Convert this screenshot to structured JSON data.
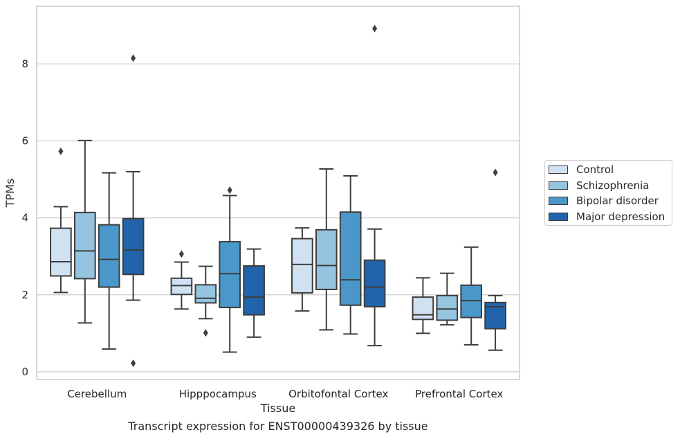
{
  "caption": "Transcript expression for ENST00000439326 by tissue",
  "chart_data": {
    "type": "box",
    "xlabel": "Tissue",
    "ylabel": "TPMs",
    "ylim": [
      -0.2,
      9.5
    ],
    "yticks": [
      0,
      2,
      4,
      6,
      8
    ],
    "grid": "horizontal",
    "legend_placement": "right",
    "categories": [
      "Cerebellum",
      "Hipppocampus",
      "Orbitofontal Cortex",
      "Prefrontal Cortex"
    ],
    "series": [
      {
        "name": "Control",
        "color": "#d0e1f2",
        "boxes": [
          {
            "whisker_low": 2.06,
            "q1": 2.49,
            "median": 2.86,
            "q3": 3.73,
            "whisker_high": 4.29,
            "outliers": [
              5.73
            ]
          },
          {
            "whisker_low": 1.63,
            "q1": 2.01,
            "median": 2.24,
            "q3": 2.43,
            "whisker_high": 2.85,
            "outliers": [
              3.06
            ]
          },
          {
            "whisker_low": 1.58,
            "q1": 2.05,
            "median": 2.79,
            "q3": 3.46,
            "whisker_high": 3.74,
            "outliers": []
          },
          {
            "whisker_low": 1.0,
            "q1": 1.36,
            "median": 1.48,
            "q3": 1.94,
            "whisker_high": 2.44,
            "outliers": []
          }
        ]
      },
      {
        "name": "Schizophrenia",
        "color": "#94c4df",
        "boxes": [
          {
            "whisker_low": 1.27,
            "q1": 2.42,
            "median": 3.14,
            "q3": 4.14,
            "whisker_high": 6.01,
            "outliers": []
          },
          {
            "whisker_low": 1.38,
            "q1": 1.79,
            "median": 1.91,
            "q3": 2.26,
            "whisker_high": 2.74,
            "outliers": [
              1.01
            ]
          },
          {
            "whisker_low": 1.09,
            "q1": 2.14,
            "median": 2.76,
            "q3": 3.69,
            "whisker_high": 5.27,
            "outliers": []
          },
          {
            "whisker_low": 1.22,
            "q1": 1.34,
            "median": 1.63,
            "q3": 1.98,
            "whisker_high": 2.56,
            "outliers": []
          }
        ]
      },
      {
        "name": "Bipolar disorder",
        "color": "#4a98c9",
        "boxes": [
          {
            "whisker_low": 0.59,
            "q1": 2.2,
            "median": 2.92,
            "q3": 3.82,
            "whisker_high": 5.17,
            "outliers": []
          },
          {
            "whisker_low": 0.51,
            "q1": 1.67,
            "median": 2.55,
            "q3": 3.38,
            "whisker_high": 4.58,
            "outliers": [
              4.72
            ]
          },
          {
            "whisker_low": 0.98,
            "q1": 1.73,
            "median": 2.39,
            "q3": 4.15,
            "whisker_high": 5.09,
            "outliers": []
          },
          {
            "whisker_low": 0.7,
            "q1": 1.41,
            "median": 1.85,
            "q3": 2.25,
            "whisker_high": 3.24,
            "outliers": []
          }
        ]
      },
      {
        "name": "Major depression",
        "color": "#2164ab",
        "boxes": [
          {
            "whisker_low": 1.86,
            "q1": 2.53,
            "median": 3.16,
            "q3": 3.98,
            "whisker_high": 5.2,
            "outliers": [
              8.15,
              0.22
            ]
          },
          {
            "whisker_low": 0.9,
            "q1": 1.48,
            "median": 1.94,
            "q3": 2.75,
            "whisker_high": 3.19,
            "outliers": []
          },
          {
            "whisker_low": 0.68,
            "q1": 1.69,
            "median": 2.2,
            "q3": 2.9,
            "whisker_high": 3.71,
            "outliers": [
              8.92
            ]
          },
          {
            "whisker_low": 0.56,
            "q1": 1.12,
            "median": 1.69,
            "q3": 1.8,
            "whisker_high": 1.98,
            "outliers": [
              5.18
            ]
          }
        ]
      }
    ]
  }
}
